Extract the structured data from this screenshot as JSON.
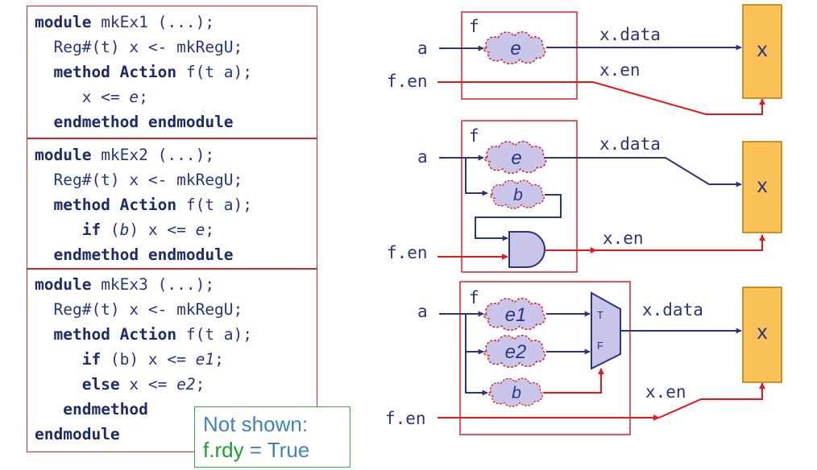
{
  "code": {
    "ex1": [
      [
        {
          "t": "module",
          "s": "kw"
        },
        {
          "t": " mkEx1 (...);"
        }
      ],
      [
        {
          "t": "  Reg#(t) x <- mkRegU;"
        }
      ],
      [
        {
          "t": "  "
        },
        {
          "t": "method Action",
          "s": "kw"
        },
        {
          "t": " f(t a);"
        }
      ],
      [
        {
          "t": "     x <= "
        },
        {
          "t": "e",
          "s": "it"
        },
        {
          "t": ";"
        }
      ],
      [
        {
          "t": "  "
        },
        {
          "t": "endmethod endmodule",
          "s": "kw"
        }
      ]
    ],
    "ex2": [
      [
        {
          "t": "module",
          "s": "kw"
        },
        {
          "t": " mkEx2 (...);"
        }
      ],
      [
        {
          "t": "  Reg#(t) x <- mkRegU;"
        }
      ],
      [
        {
          "t": "  "
        },
        {
          "t": "method Action",
          "s": "kw"
        },
        {
          "t": " f(t a);"
        }
      ],
      [
        {
          "t": "     "
        },
        {
          "t": "if",
          "s": "kw"
        },
        {
          "t": " ("
        },
        {
          "t": "b",
          "s": "it"
        },
        {
          "t": ") x <= "
        },
        {
          "t": "e",
          "s": "it"
        },
        {
          "t": ";"
        }
      ],
      [
        {
          "t": "  "
        },
        {
          "t": "endmethod endmodule",
          "s": "kw"
        }
      ]
    ],
    "ex3": [
      [
        {
          "t": "module",
          "s": "kw"
        },
        {
          "t": " mkEx3 (...);"
        }
      ],
      [
        {
          "t": "  Reg#(t) x <- mkRegU;"
        }
      ],
      [
        {
          "t": "  "
        },
        {
          "t": "method Action",
          "s": "kw"
        },
        {
          "t": " f(t a);"
        }
      ],
      [
        {
          "t": "     "
        },
        {
          "t": "if",
          "s": "kw"
        },
        {
          "t": " (b) x <= "
        },
        {
          "t": "e1",
          "s": "it"
        },
        {
          "t": ";"
        }
      ],
      [
        {
          "t": "     "
        },
        {
          "t": "else",
          "s": "kw"
        },
        {
          "t": " x <= "
        },
        {
          "t": "e2",
          "s": "it"
        },
        {
          "t": ";"
        }
      ],
      [
        {
          "t": "   "
        },
        {
          "t": "endmethod",
          "s": "kw"
        }
      ],
      [
        {
          "t": "endmodule",
          "s": "kw"
        }
      ]
    ]
  },
  "note": {
    "line1": "Not shown:",
    "line2_a": "f.rdy",
    "line2_b": " = True"
  },
  "diagram": {
    "labels": {
      "f": "f",
      "a": "a",
      "f_en": "f.en",
      "x_data": "x.data",
      "x_en": "x.en",
      "reg": "x",
      "mux_t": "T",
      "mux_f": "F"
    },
    "clouds": {
      "e": "e",
      "b": "b",
      "e1": "e1",
      "e2": "e2"
    }
  },
  "colors": {
    "code_text": "#2a3580",
    "box_border": "#d8242a",
    "wire_blue": "#2a3580",
    "wire_red": "#e8151b",
    "cloud_fill": "#c9c6ea",
    "cloud_stroke": "#d8242a",
    "register_fill": "#fcc25a",
    "register_stroke": "#b77a00",
    "note_blue": "#3f82c9",
    "note_green": "#1aa033"
  }
}
